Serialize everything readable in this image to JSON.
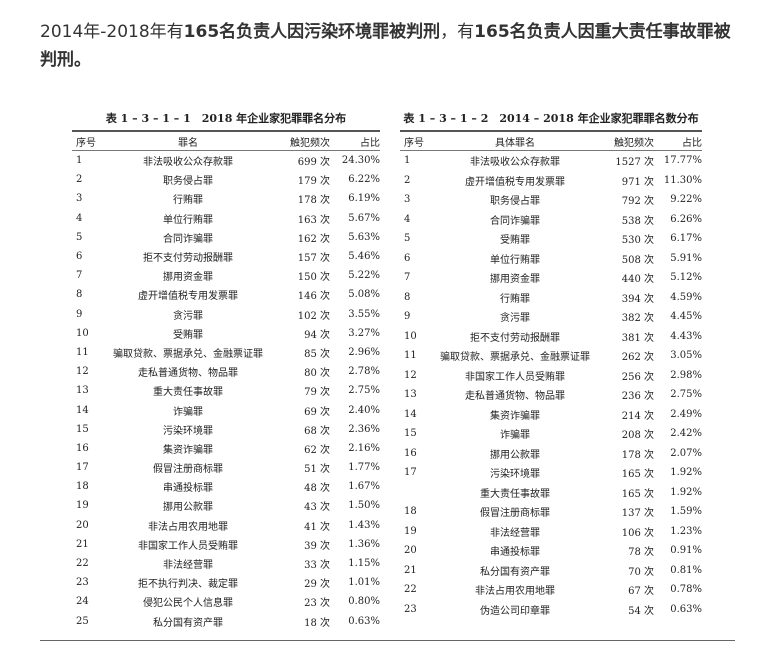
{
  "intro": {
    "part1": "2014年-2018年有",
    "bold1": "165名负责人因污染环境罪被判刑",
    "part2": "，有",
    "bold2": "165名负责人因重大责任事故罪被判刑。"
  },
  "table1": {
    "title": "表 1 – 3 – 1 – 1　2018 年企业家犯罪罪名分布",
    "headers": [
      "序号",
      "罪名",
      "触犯频次",
      "占比"
    ],
    "rows": [
      [
        "1",
        "非法吸收公众存款罪",
        "699 次",
        "24.30%"
      ],
      [
        "2",
        "职务侵占罪",
        "179 次",
        "6.22%"
      ],
      [
        "3",
        "行贿罪",
        "178 次",
        "6.19%"
      ],
      [
        "4",
        "单位行贿罪",
        "163 次",
        "5.67%"
      ],
      [
        "5",
        "合同诈骗罪",
        "162 次",
        "5.63%"
      ],
      [
        "6",
        "拒不支付劳动报酬罪",
        "157 次",
        "5.46%"
      ],
      [
        "7",
        "挪用资金罪",
        "150 次",
        "5.22%"
      ],
      [
        "8",
        "虚开增值税专用发票罪",
        "146 次",
        "5.08%"
      ],
      [
        "9",
        "贪污罪",
        "102 次",
        "3.55%"
      ],
      [
        "10",
        "受贿罪",
        "94 次",
        "3.27%"
      ],
      [
        "11",
        "骗取贷款、票据承兑、金融票证罪",
        "85 次",
        "2.96%"
      ],
      [
        "12",
        "走私普通货物、物品罪",
        "80 次",
        "2.78%"
      ],
      [
        "13",
        "重大责任事故罪",
        "79 次",
        "2.75%"
      ],
      [
        "14",
        "诈骗罪",
        "69 次",
        "2.40%"
      ],
      [
        "15",
        "污染环境罪",
        "68 次",
        "2.36%"
      ],
      [
        "16",
        "集资诈骗罪",
        "62 次",
        "2.16%"
      ],
      [
        "17",
        "假冒注册商标罪",
        "51 次",
        "1.77%"
      ],
      [
        "18",
        "串通投标罪",
        "48 次",
        "1.67%"
      ],
      [
        "19",
        "挪用公款罪",
        "43 次",
        "1.50%"
      ],
      [
        "20",
        "非法占用农用地罪",
        "41 次",
        "1.43%"
      ],
      [
        "21",
        "非国家工作人员受贿罪",
        "39 次",
        "1.36%"
      ],
      [
        "22",
        "非法经营罪",
        "33 次",
        "1.15%"
      ],
      [
        "23",
        "拒不执行判决、裁定罪",
        "29 次",
        "1.01%"
      ],
      [
        "24",
        "侵犯公民个人信息罪",
        "23 次",
        "0.80%"
      ],
      [
        "25",
        "私分国有资产罪",
        "18 次",
        "0.63%"
      ]
    ]
  },
  "table2": {
    "title": "表 1 – 3 – 1 – 2　2014 – 2018 年企业家犯罪罪名数分布",
    "headers": [
      "序号",
      "具体罪名",
      "触犯频次",
      "占比"
    ],
    "rows": [
      [
        "1",
        "非法吸收公众存款罪",
        "1527 次",
        "17.77%"
      ],
      [
        "2",
        "虚开增值税专用发票罪",
        "971 次",
        "11.30%"
      ],
      [
        "3",
        "职务侵占罪",
        "792 次",
        "9.22%"
      ],
      [
        "4",
        "合同诈骗罪",
        "538 次",
        "6.26%"
      ],
      [
        "5",
        "受贿罪",
        "530 次",
        "6.17%"
      ],
      [
        "6",
        "单位行贿罪",
        "508 次",
        "5.91%"
      ],
      [
        "7",
        "挪用资金罪",
        "440 次",
        "5.12%"
      ],
      [
        "8",
        "行贿罪",
        "394 次",
        "4.59%"
      ],
      [
        "9",
        "贪污罪",
        "382 次",
        "4.45%"
      ],
      [
        "10",
        "拒不支付劳动报酬罪",
        "381 次",
        "4.43%"
      ],
      [
        "11",
        "骗取贷款、票据承兑、金融票证罪",
        "262 次",
        "3.05%"
      ],
      [
        "12",
        "非国家工作人员受贿罪",
        "256 次",
        "2.98%"
      ],
      [
        "13",
        "走私普通货物、物品罪",
        "236 次",
        "2.75%"
      ],
      [
        "14",
        "集资诈骗罪",
        "214 次",
        "2.49%"
      ],
      [
        "15",
        "诈骗罪",
        "208 次",
        "2.42%"
      ],
      [
        "16",
        "挪用公款罪",
        "178 次",
        "2.07%"
      ],
      [
        "17",
        "污染环境罪",
        "165 次",
        "1.92%"
      ],
      [
        "",
        "重大责任事故罪",
        "165 次",
        "1.92%"
      ],
      [
        "18",
        "假冒注册商标罪",
        "137 次",
        "1.59%"
      ],
      [
        "19",
        "非法经营罪",
        "106 次",
        "1.23%"
      ],
      [
        "20",
        "串通投标罪",
        "78 次",
        "0.91%"
      ],
      [
        "21",
        "私分国有资产罪",
        "70 次",
        "0.81%"
      ],
      [
        "22",
        "非法占用农用地罪",
        "67 次",
        "0.78%"
      ],
      [
        "23",
        "伪造公司印章罪",
        "54 次",
        "0.63%"
      ]
    ]
  }
}
